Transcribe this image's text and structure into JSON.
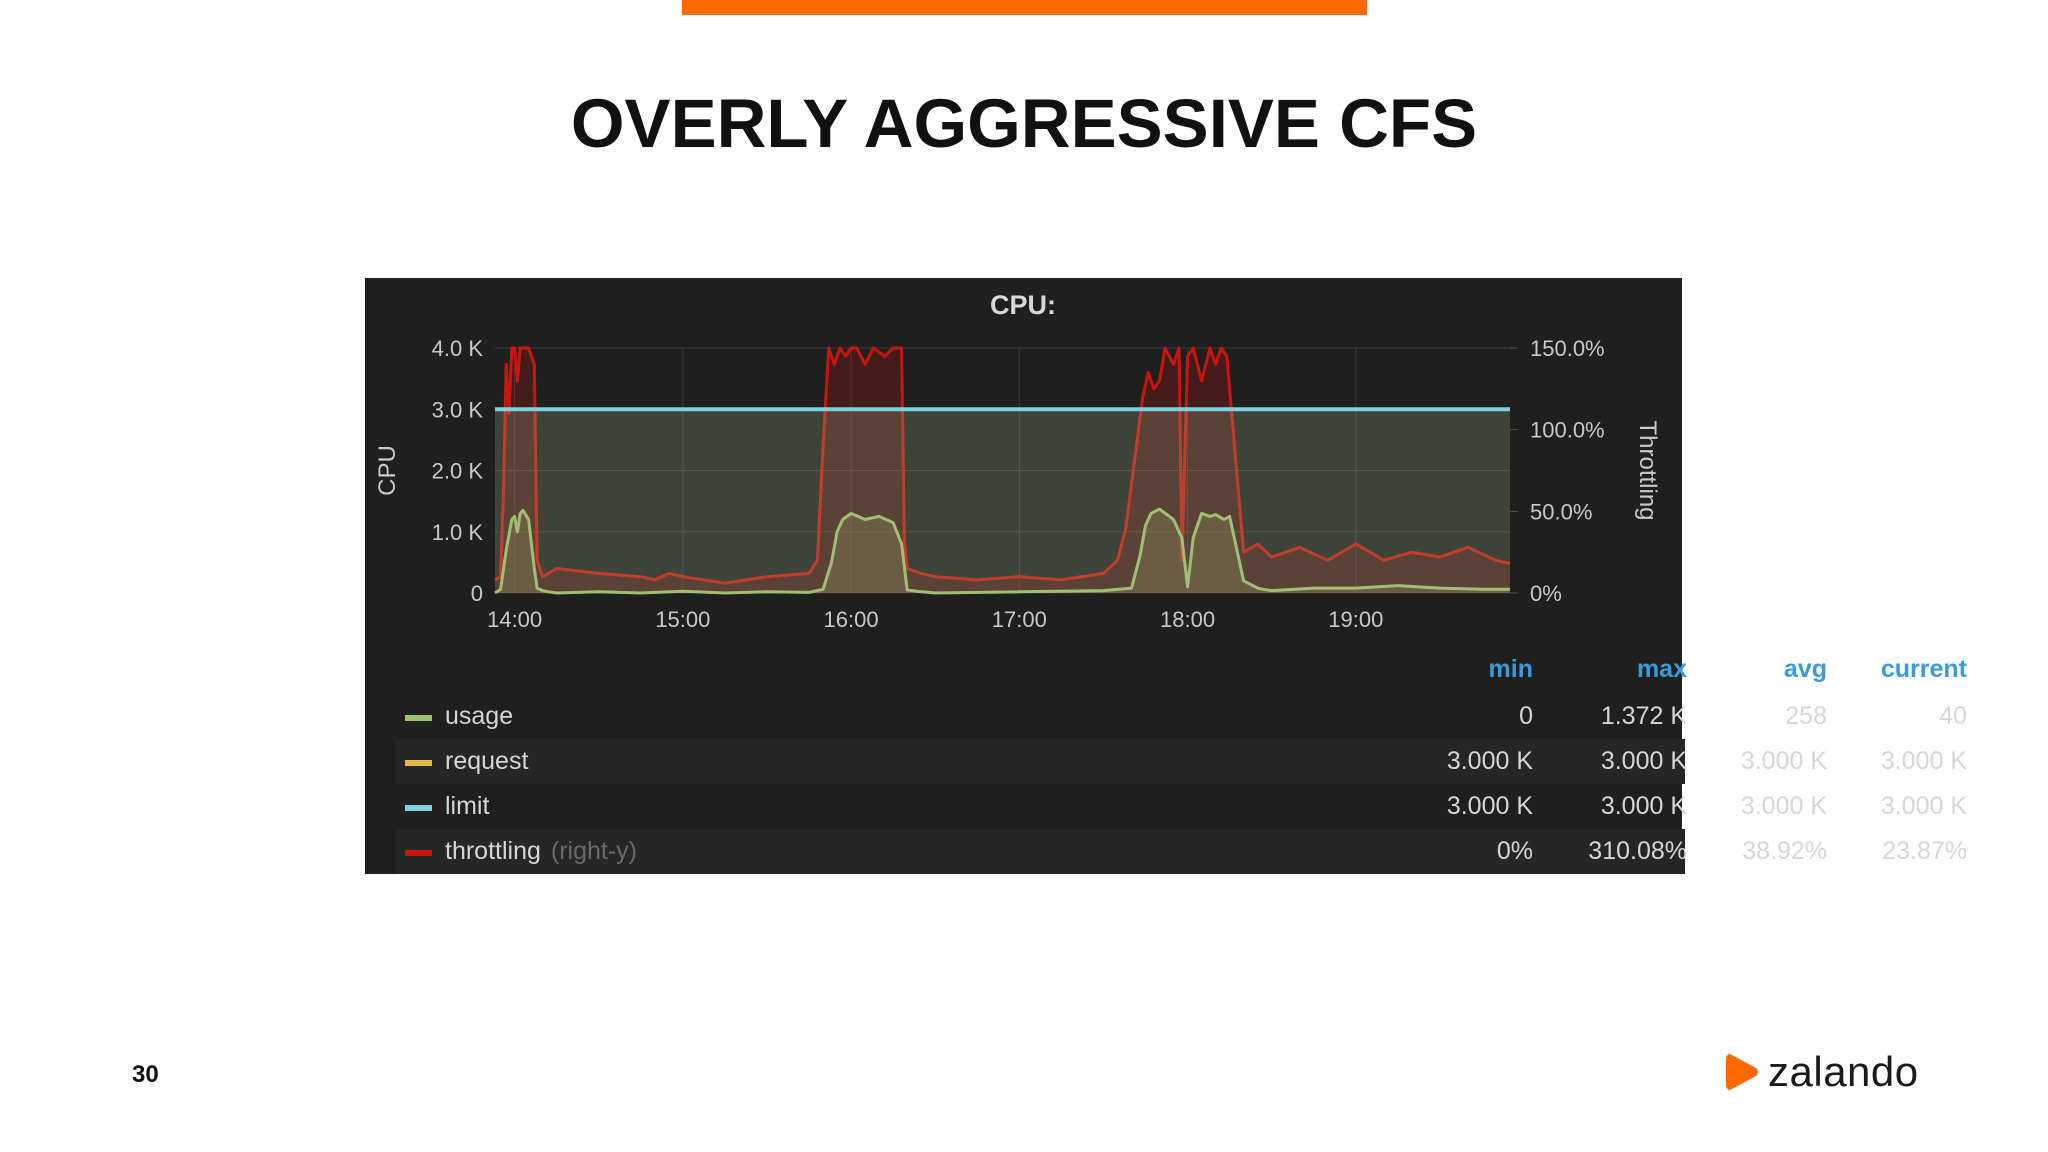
{
  "slide": {
    "title": "OVERLY AGGRESSIVE CFS",
    "page_number": "30",
    "logo_text": "zalando",
    "accent_color": "#ff6900"
  },
  "chart_data": {
    "type": "line",
    "title": "CPU:",
    "ylabel": "CPU",
    "ylabel_right": "Throttling",
    "x_ticks": [
      "14:00",
      "15:00",
      "16:00",
      "17:00",
      "18:00",
      "19:00"
    ],
    "y_ticks": [
      "0",
      "1.0 K",
      "2.0 K",
      "3.0 K",
      "4.0 K"
    ],
    "y_ticks_right": [
      "0%",
      "50.0%",
      "100.0%",
      "150.0%"
    ],
    "xlim": [
      "13:53",
      "19:55"
    ],
    "ylim": [
      0,
      4000
    ],
    "ylim_right": [
      0,
      150
    ],
    "grid": true,
    "legend_position": "bottom",
    "series": [
      {
        "name": "usage",
        "color": "#9fbf6a",
        "axis": "left",
        "x": [
          "13:53",
          "13:55",
          "13:57",
          "13:59",
          "14:00",
          "14:01",
          "14:02",
          "14:03",
          "14:05",
          "14:07",
          "14:08",
          "14:10",
          "14:12",
          "14:15",
          "14:30",
          "14:45",
          "15:00",
          "15:15",
          "15:30",
          "15:45",
          "15:50",
          "15:53",
          "15:55",
          "15:57",
          "16:00",
          "16:05",
          "16:10",
          "16:15",
          "16:18",
          "16:20",
          "16:25",
          "16:30",
          "17:00",
          "17:30",
          "17:40",
          "17:43",
          "17:45",
          "17:47",
          "17:50",
          "17:55",
          "17:58",
          "18:00",
          "18:02",
          "18:05",
          "18:08",
          "18:10",
          "18:13",
          "18:15",
          "18:20",
          "18:25",
          "18:27",
          "18:30",
          "18:45",
          "19:00",
          "19:15",
          "19:30",
          "19:45",
          "19:55"
        ],
        "y": [
          0,
          60,
          700,
          1200,
          1250,
          1000,
          1300,
          1350,
          1200,
          400,
          80,
          40,
          20,
          0,
          20,
          0,
          30,
          0,
          20,
          10,
          60,
          500,
          1000,
          1200,
          1300,
          1200,
          1250,
          1150,
          800,
          50,
          20,
          0,
          20,
          40,
          80,
          600,
          1100,
          1300,
          1370,
          1200,
          900,
          100,
          900,
          1300,
          1250,
          1280,
          1200,
          1250,
          200,
          80,
          60,
          40,
          80,
          80,
          120,
          80,
          60,
          60
        ]
      },
      {
        "name": "request",
        "color": "#e3b84a",
        "axis": "left",
        "x": [
          "13:53",
          "19:55"
        ],
        "y": [
          3000,
          3000
        ]
      },
      {
        "name": "limit",
        "color": "#7fd1e0",
        "axis": "left",
        "x": [
          "13:53",
          "19:55"
        ],
        "y": [
          3000,
          3000
        ]
      },
      {
        "name": "throttling",
        "color": "#c8160f",
        "axis": "right",
        "x": [
          "13:53",
          "13:55",
          "13:56",
          "13:57",
          "13:58",
          "13:59",
          "14:00",
          "14:01",
          "14:02",
          "14:05",
          "14:07",
          "14:08",
          "14:10",
          "14:15",
          "14:30",
          "14:45",
          "14:50",
          "14:55",
          "15:00",
          "15:15",
          "15:30",
          "15:45",
          "15:48",
          "15:50",
          "15:52",
          "15:54",
          "15:56",
          "15:58",
          "16:00",
          "16:02",
          "16:05",
          "16:08",
          "16:12",
          "16:15",
          "16:18",
          "16:19",
          "16:20",
          "16:25",
          "16:30",
          "16:45",
          "17:00",
          "17:15",
          "17:30",
          "17:35",
          "17:38",
          "17:41",
          "17:44",
          "17:46",
          "17:48",
          "17:50",
          "17:52",
          "17:55",
          "17:57",
          "17:58",
          "18:00",
          "18:02",
          "18:05",
          "18:08",
          "18:10",
          "18:12",
          "18:14",
          "18:20",
          "18:25",
          "18:30",
          "18:40",
          "18:50",
          "19:00",
          "19:10",
          "19:20",
          "19:30",
          "19:40",
          "19:50",
          "19:55"
        ],
        "y": [
          8,
          10,
          60,
          140,
          110,
          150,
          155,
          130,
          150,
          155,
          140,
          20,
          10,
          15,
          12,
          10,
          8,
          12,
          10,
          6,
          10,
          12,
          20,
          90,
          155,
          140,
          150,
          145,
          155,
          150,
          140,
          152,
          145,
          155,
          150,
          30,
          15,
          12,
          10,
          8,
          10,
          8,
          12,
          20,
          40,
          80,
          120,
          135,
          125,
          130,
          150,
          140,
          155,
          20,
          145,
          150,
          130,
          155,
          140,
          150,
          145,
          25,
          30,
          22,
          28,
          20,
          30,
          20,
          25,
          22,
          28,
          20,
          18
        ]
      }
    ],
    "legend_columns": [
      "min",
      "max",
      "avg",
      "current"
    ],
    "legend_rows": [
      {
        "name": "usage",
        "hint": "",
        "color": "#9fbf6a",
        "min": "0",
        "max": "1.372 K",
        "avg": "258",
        "current": "40"
      },
      {
        "name": "request",
        "hint": "",
        "color": "#e3b84a",
        "min": "3.000 K",
        "max": "3.000 K",
        "avg": "3.000 K",
        "current": "3.000 K"
      },
      {
        "name": "limit",
        "hint": "",
        "color": "#7fd1e0",
        "min": "3.000 K",
        "max": "3.000 K",
        "avg": "3.000 K",
        "current": "3.000 K"
      },
      {
        "name": "throttling",
        "hint": "(right-y)",
        "color": "#c8160f",
        "min": "0%",
        "max": "310.08%",
        "avg": "38.92%",
        "current": "23.87%"
      }
    ]
  }
}
